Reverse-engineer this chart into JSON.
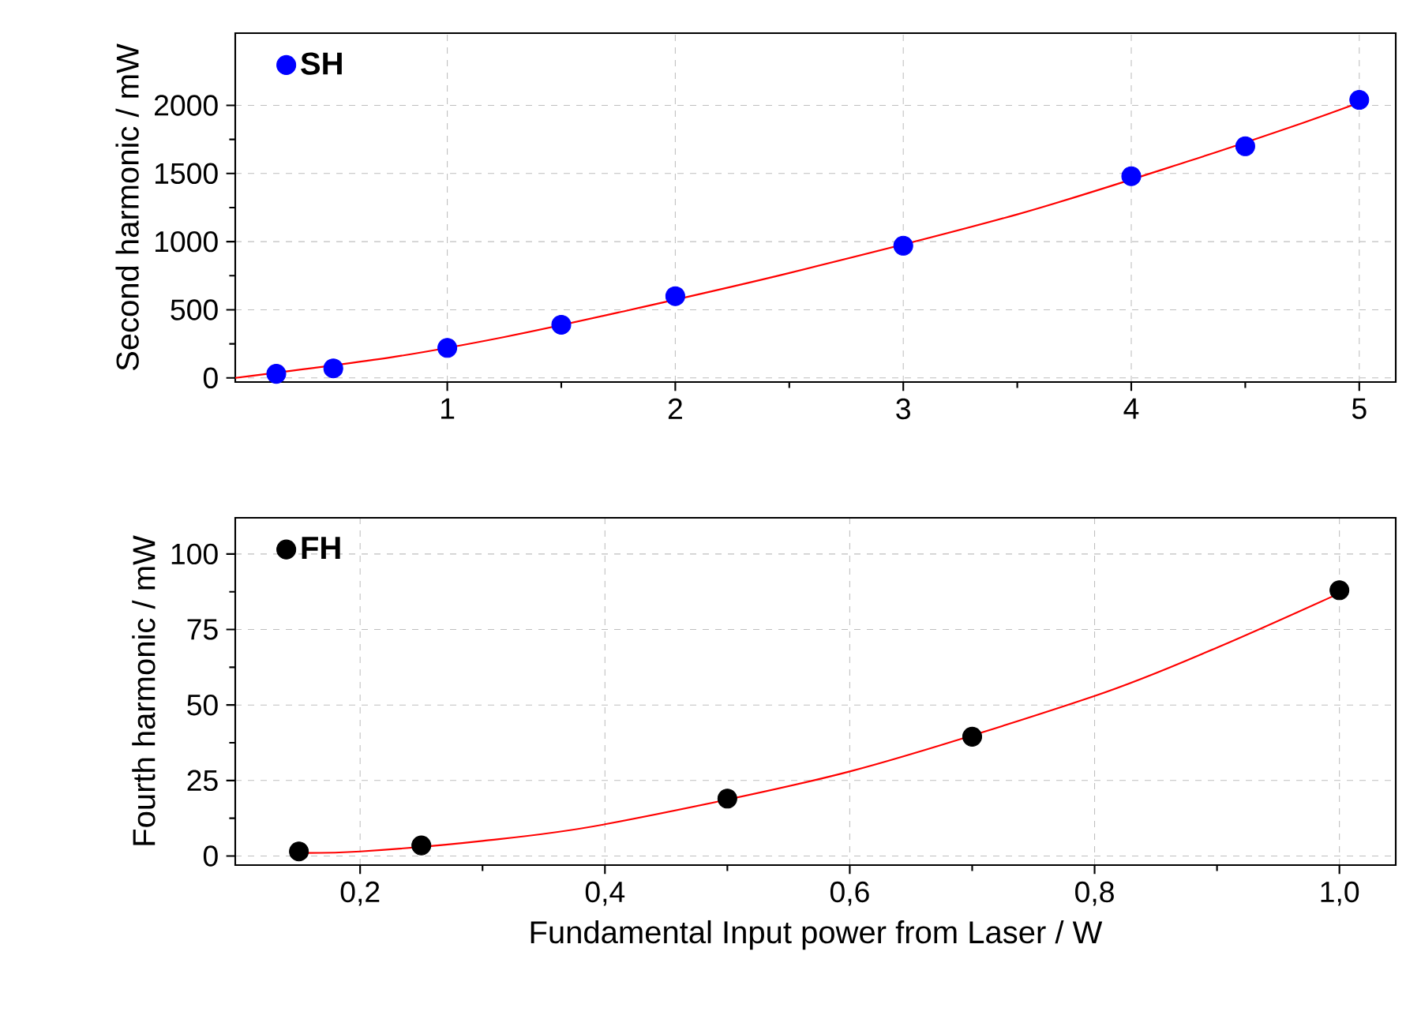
{
  "chart_data": [
    {
      "type": "scatter",
      "ylabel": "Second harmonic / mW",
      "xlim": [
        0.07,
        5.16
      ],
      "ylim": [
        -30,
        2530
      ],
      "xticks": [
        1,
        2,
        3,
        4,
        5
      ],
      "yticks": [
        0,
        500,
        1000,
        1500,
        2000
      ],
      "grid": true,
      "legend": "top left",
      "series": [
        {
          "name": "SH",
          "marker": "circle",
          "color": "#0000ff",
          "x": [
            0.25,
            0.5,
            1,
            1.5,
            2,
            3,
            4,
            4.5,
            5
          ],
          "values": [
            30,
            70,
            220,
            390,
            600,
            970,
            1480,
            1700,
            2040
          ]
        },
        {
          "type": "line",
          "marker": "none",
          "color": "#ff0000",
          "x": [
            0.07,
            0.75,
            1.25,
            1.75,
            2.5,
            3.5,
            4.25,
            4.75,
            5
          ],
          "values": [
            0,
            150,
            300,
            480,
            770,
            1200,
            1590,
            1870,
            2020
          ]
        }
      ]
    },
    {
      "type": "scatter",
      "xlabel": "Fundamental Input power from Laser / W",
      "ylabel": "Fourth harmonic / mW",
      "xlim": [
        0.098,
        1.046
      ],
      "ylim": [
        -3,
        112
      ],
      "xticks": [
        {
          "value": 0.2,
          "label": "0,2"
        },
        {
          "value": 0.4,
          "label": "0,4"
        },
        {
          "value": 0.6,
          "label": "0,6"
        },
        {
          "value": 0.8,
          "label": "0,8"
        },
        {
          "value": 1.0,
          "label": "1,0"
        }
      ],
      "yticks": [
        0,
        25,
        50,
        75,
        100
      ],
      "grid": true,
      "legend": "top left",
      "series": [
        {
          "name": "FH",
          "marker": "circle",
          "color": "#000000",
          "x": [
            0.15,
            0.25,
            0.5,
            0.7,
            1.0
          ],
          "values": [
            1.5,
            3.5,
            19,
            39.5,
            88
          ]
        },
        {
          "type": "line",
          "marker": "none",
          "color": "#ff0000",
          "x": [
            0.15,
            0.2,
            0.3,
            0.4,
            0.6,
            0.8,
            0.9,
            1.0
          ],
          "values": [
            1,
            1.5,
            5,
            10.5,
            28,
            53,
            69,
            87
          ]
        }
      ]
    }
  ]
}
